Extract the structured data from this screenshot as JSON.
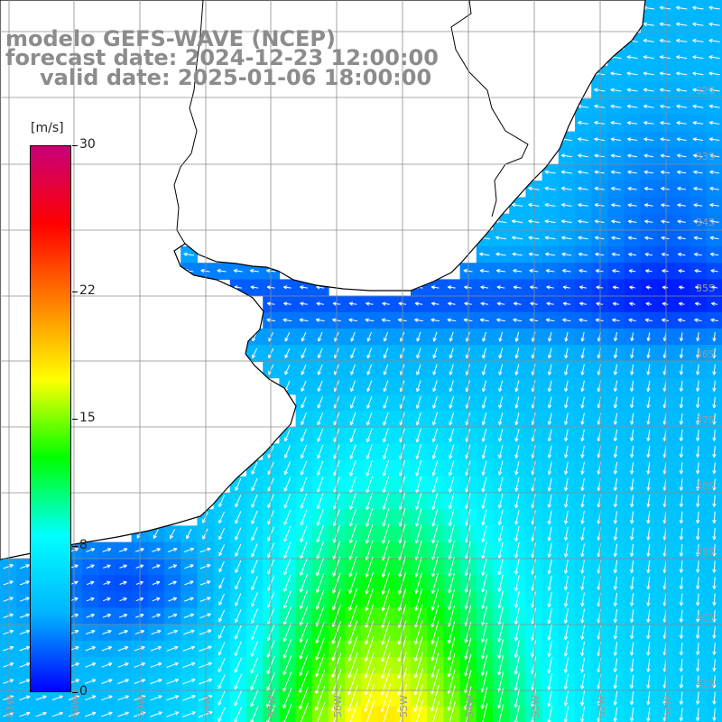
{
  "title": {
    "line1": "modelo GEFS-WAVE (NCEP)",
    "line2": "forecast date: 2024-12-23 12:00:00",
    "line3": "valid date: 2025-01-06 18:00:00"
  },
  "colorbar": {
    "unit": "[m/s]",
    "ticks": [
      {
        "value": 30,
        "label": "30"
      },
      {
        "value": 22,
        "label": "22"
      },
      {
        "value": 15,
        "label": "15"
      },
      {
        "value": 8,
        "label": "8"
      },
      {
        "value": 0,
        "label": "0"
      }
    ],
    "range": [
      0,
      30
    ],
    "colors": [
      "#0000ff",
      "#00b4ff",
      "#00ffff",
      "#00ff00",
      "#ffff00",
      "#ff8000",
      "#ff0000",
      "#c8007a"
    ]
  },
  "grid": {
    "lat_labels": [
      "32S",
      "33S",
      "34S",
      "35S",
      "36S",
      "37S",
      "38S",
      "39S",
      "40S",
      "41S"
    ],
    "lon_labels": [
      "61W",
      "60W",
      "59W",
      "58W",
      "57W",
      "56W",
      "55W",
      "54W",
      "53W",
      "52W",
      "51W"
    ]
  },
  "colors": {
    "land": "#ffffff",
    "coast": "#000000",
    "grid": "#8c8c8c",
    "arrow": "#ffffff",
    "title": "#8c8c8c"
  }
}
